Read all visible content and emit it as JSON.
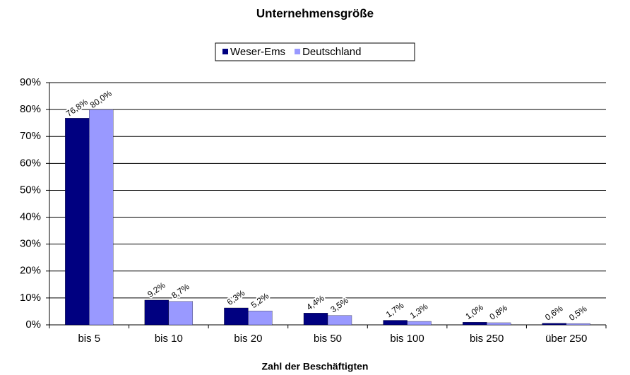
{
  "chart_data": {
    "type": "bar",
    "title": "Unternehmensgröße",
    "x_label": "Zahl der Beschäftigten",
    "categories": [
      "bis 5",
      "bis 10",
      "bis 20",
      "bis 50",
      "bis 100",
      "bis 250",
      "über 250"
    ],
    "series": [
      {
        "name": "Weser-Ems",
        "color": "#000080",
        "values": [
          76.8,
          9.2,
          6.3,
          4.4,
          1.7,
          1.0,
          0.6
        ],
        "value_labels": [
          "76,8%",
          "9,2%",
          "6,3%",
          "4,4%",
          "1,7%",
          "1,0%",
          "0,6%"
        ]
      },
      {
        "name": "Deutschland",
        "color": "#9999ff",
        "values": [
          80.0,
          8.7,
          5.2,
          3.5,
          1.3,
          0.8,
          0.5
        ],
        "value_labels": [
          "80,0%",
          "8,7%",
          "5,2%",
          "3,5%",
          "1,3%",
          "0,8%",
          "0,5%"
        ]
      }
    ],
    "ylim": [
      0,
      90
    ],
    "yticks": [
      {
        "value": 0,
        "label": "0%"
      },
      {
        "value": 10,
        "label": "10%"
      },
      {
        "value": 20,
        "label": "20%"
      },
      {
        "value": 30,
        "label": "30%"
      },
      {
        "value": 40,
        "label": "40%"
      },
      {
        "value": 50,
        "label": "50%"
      },
      {
        "value": 60,
        "label": "60%"
      },
      {
        "value": 70,
        "label": "70%"
      },
      {
        "value": 80,
        "label": "80%"
      },
      {
        "value": 90,
        "label": "90%"
      }
    ],
    "grid": true,
    "legend": "top"
  }
}
